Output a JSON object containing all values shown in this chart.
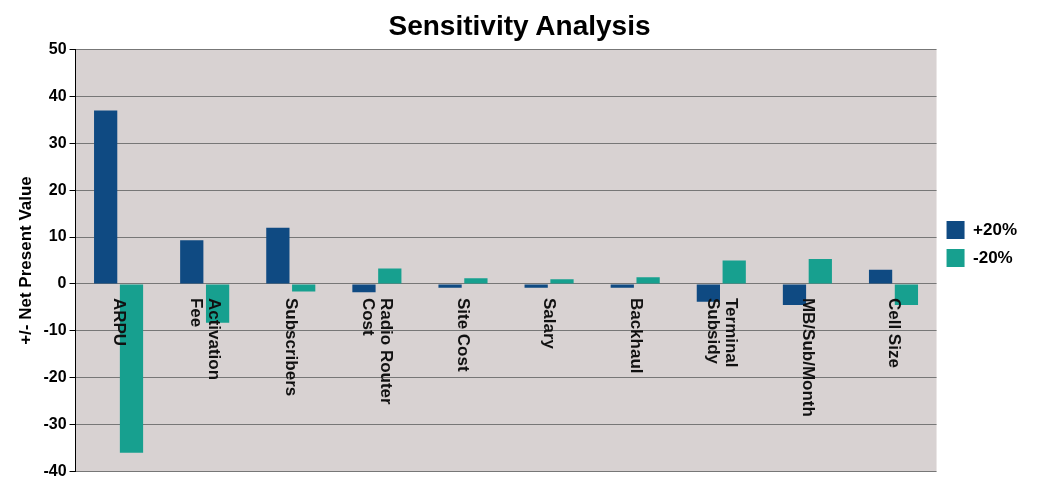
{
  "chart_data": {
    "type": "bar",
    "title": "Sensitivity Analysis",
    "ylabel": "+/- Net Present Value",
    "categories": [
      "ARPU",
      "Activation Fee",
      "Subscribers",
      "Radio Router Cost",
      "Site Cost",
      "Salary",
      "Backhaul",
      "Terminal Subsidy",
      "MB/Sub/Month",
      "Cell Size"
    ],
    "series": [
      {
        "name": "+20%",
        "color": "#0f4a82",
        "values": [
          37,
          9.3,
          12,
          -1.8,
          -0.8,
          -0.8,
          -0.8,
          -3.8,
          -4.5,
          3
        ]
      },
      {
        "name": "-20%",
        "color": "#17a08f",
        "values": [
          -36,
          -8.3,
          -1.6,
          3.3,
          1.2,
          1,
          1.4,
          5,
          5.3,
          -4.5
        ]
      }
    ],
    "ylim": [
      -40,
      50
    ],
    "yticks": [
      -40,
      -30,
      -20,
      -10,
      0,
      10,
      20,
      30,
      40,
      50
    ],
    "grid": "y",
    "legend": "right"
  }
}
